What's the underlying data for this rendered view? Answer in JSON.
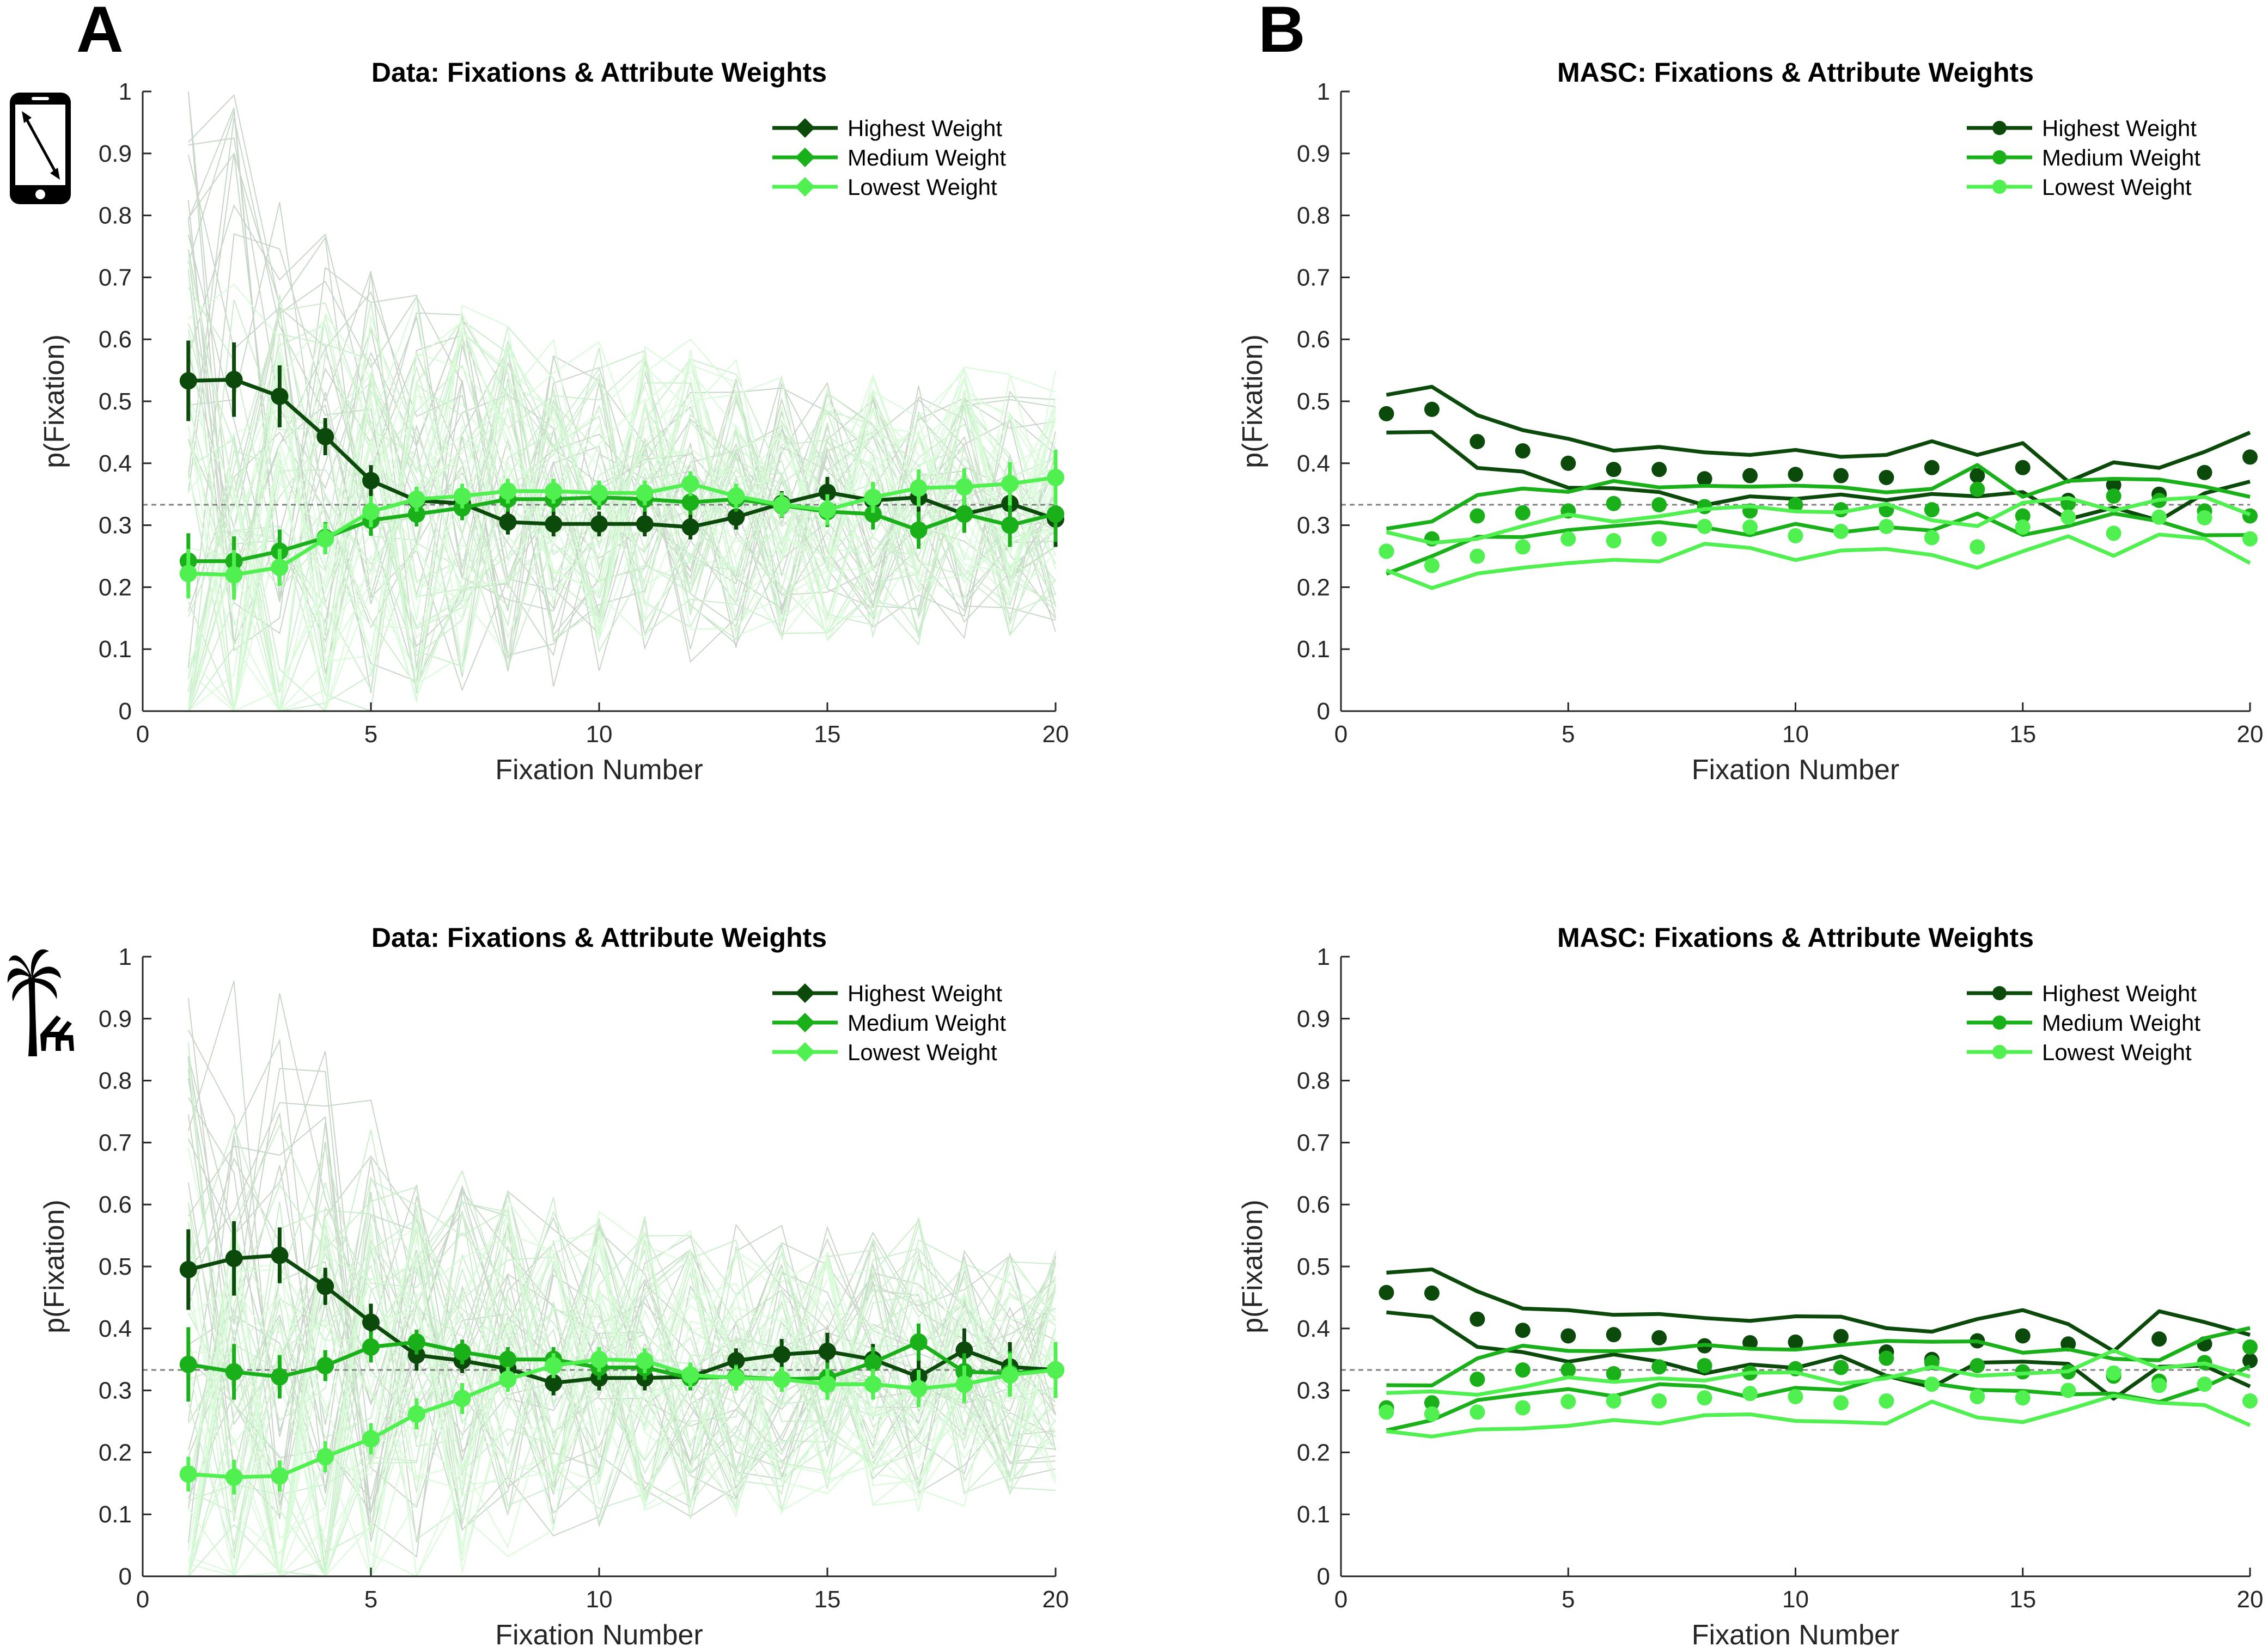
{
  "panel_letters": [
    "A",
    "B"
  ],
  "colors": {
    "highest": "#0b4a0b",
    "medium": "#19b019",
    "lowest": "#4ff04f",
    "chance": "#808080",
    "axis": "#262626"
  },
  "icons": [
    "smartphone-icon",
    "palm-tree-beach-chairs-icon"
  ],
  "chart_data": [
    {
      "type": "line",
      "title": "Data: Fixations & Attribute Weights",
      "xlabel": "Fixation Number",
      "ylabel": "p(Fixation)",
      "xlim": [
        0,
        20
      ],
      "ylim": [
        0,
        1
      ],
      "xticks": [
        0,
        5,
        10,
        15,
        20
      ],
      "yticks": [
        0,
        0.1,
        0.2,
        0.3,
        0.4,
        0.5,
        0.6,
        0.7,
        0.8,
        0.9,
        1
      ],
      "chance_level": 0.333,
      "legend_position": "top-right",
      "x": [
        1,
        2,
        3,
        4,
        5,
        6,
        7,
        8,
        9,
        10,
        11,
        12,
        13,
        14,
        15,
        16,
        17,
        18,
        19,
        20
      ],
      "series": [
        {
          "name": "Highest Weight",
          "color": "#0b4a0b",
          "values": [
            0.533,
            0.535,
            0.508,
            0.443,
            0.372,
            0.34,
            0.335,
            0.305,
            0.302,
            0.302,
            0.302,
            0.297,
            0.313,
            0.335,
            0.353,
            0.34,
            0.345,
            0.318,
            0.335,
            0.31
          ],
          "error": [
            0.065,
            0.06,
            0.05,
            0.03,
            0.025,
            0.02,
            0.02,
            0.02,
            0.02,
            0.02,
            0.02,
            0.02,
            0.02,
            0.02,
            0.025,
            0.025,
            0.03,
            0.03,
            0.035,
            0.045
          ]
        },
        {
          "name": "Medium Weight",
          "color": "#19b019",
          "values": [
            0.242,
            0.242,
            0.258,
            0.28,
            0.308,
            0.318,
            0.328,
            0.342,
            0.342,
            0.345,
            0.342,
            0.337,
            0.342,
            0.332,
            0.322,
            0.318,
            0.292,
            0.318,
            0.3,
            0.318
          ],
          "error": [
            0.045,
            0.04,
            0.035,
            0.025,
            0.025,
            0.02,
            0.02,
            0.02,
            0.02,
            0.02,
            0.02,
            0.02,
            0.02,
            0.02,
            0.025,
            0.025,
            0.03,
            0.03,
            0.035,
            0.045
          ]
        },
        {
          "name": "Lowest Weight",
          "color": "#4ff04f",
          "values": [
            0.222,
            0.22,
            0.232,
            0.278,
            0.322,
            0.342,
            0.347,
            0.355,
            0.355,
            0.352,
            0.352,
            0.367,
            0.347,
            0.333,
            0.325,
            0.345,
            0.36,
            0.362,
            0.367,
            0.377
          ],
          "error": [
            0.04,
            0.04,
            0.03,
            0.025,
            0.025,
            0.02,
            0.02,
            0.02,
            0.02,
            0.02,
            0.02,
            0.02,
            0.02,
            0.02,
            0.025,
            0.025,
            0.03,
            0.03,
            0.035,
            0.045
          ]
        }
      ]
    },
    {
      "type": "line",
      "title": "MASC: Fixations & Attribute Weights",
      "xlabel": "Fixation Number",
      "ylabel": "p(Fixation)",
      "xlim": [
        0,
        20
      ],
      "ylim": [
        0,
        1
      ],
      "xticks": [
        0,
        5,
        10,
        15,
        20
      ],
      "yticks": [
        0,
        0.1,
        0.2,
        0.3,
        0.4,
        0.5,
        0.6,
        0.7,
        0.8,
        0.9,
        1
      ],
      "chance_level": 0.333,
      "legend_position": "top-right",
      "x": [
        1,
        2,
        3,
        4,
        5,
        6,
        7,
        8,
        9,
        10,
        11,
        12,
        13,
        14,
        15,
        16,
        17,
        18,
        19,
        20
      ],
      "series": [
        {
          "name": "Highest Weight",
          "color": "#0b4a0b",
          "values": [
            0.48,
            0.487,
            0.435,
            0.42,
            0.4,
            0.39,
            0.39,
            0.375,
            0.38,
            0.382,
            0.38,
            0.377,
            0.393,
            0.38,
            0.393,
            0.34,
            0.365,
            0.35,
            0.385,
            0.41
          ],
          "band": 0.038
        },
        {
          "name": "Medium Weight",
          "color": "#19b019",
          "values": [
            0.258,
            0.278,
            0.315,
            0.32,
            0.323,
            0.335,
            0.333,
            0.33,
            0.323,
            0.333,
            0.325,
            0.325,
            0.325,
            0.358,
            0.315,
            0.335,
            0.347,
            0.34,
            0.323,
            0.315
          ],
          "band": 0.035
        },
        {
          "name": "Lowest Weight",
          "color": "#4ff04f",
          "values": [
            0.258,
            0.235,
            0.25,
            0.265,
            0.278,
            0.275,
            0.278,
            0.298,
            0.297,
            0.283,
            0.29,
            0.298,
            0.28,
            0.265,
            0.297,
            0.313,
            0.287,
            0.313,
            0.312,
            0.278
          ],
          "band": 0.035
        }
      ]
    },
    {
      "type": "line",
      "title": "Data: Fixations & Attribute Weights",
      "xlabel": "Fixation Number",
      "ylabel": "p(Fixation)",
      "xlim": [
        0,
        20
      ],
      "ylim": [
        0,
        1
      ],
      "xticks": [
        0,
        5,
        10,
        15,
        20
      ],
      "yticks": [
        0,
        0.1,
        0.2,
        0.3,
        0.4,
        0.5,
        0.6,
        0.7,
        0.8,
        0.9,
        1
      ],
      "chance_level": 0.333,
      "legend_position": "top-right",
      "x": [
        1,
        2,
        3,
        4,
        5,
        6,
        7,
        8,
        9,
        10,
        11,
        12,
        13,
        14,
        15,
        16,
        17,
        18,
        19,
        20
      ],
      "series": [
        {
          "name": "Highest Weight",
          "color": "#0b4a0b",
          "values": [
            0.495,
            0.513,
            0.518,
            0.468,
            0.41,
            0.357,
            0.348,
            0.335,
            0.312,
            0.32,
            0.32,
            0.322,
            0.348,
            0.358,
            0.363,
            0.35,
            0.322,
            0.365,
            0.338,
            0.333
          ],
          "error": [
            0.065,
            0.06,
            0.045,
            0.03,
            0.03,
            0.025,
            0.02,
            0.02,
            0.02,
            0.02,
            0.02,
            0.02,
            0.02,
            0.025,
            0.03,
            0.025,
            0.03,
            0.035,
            0.04,
            0.045
          ]
        },
        {
          "name": "Medium Weight",
          "color": "#19b019",
          "values": [
            0.342,
            0.33,
            0.322,
            0.34,
            0.37,
            0.378,
            0.362,
            0.35,
            0.35,
            0.337,
            0.337,
            0.32,
            0.322,
            0.318,
            0.32,
            0.345,
            0.378,
            0.33,
            0.328,
            0.333
          ],
          "error": [
            0.06,
            0.045,
            0.035,
            0.025,
            0.025,
            0.02,
            0.02,
            0.02,
            0.02,
            0.02,
            0.02,
            0.02,
            0.02,
            0.02,
            0.025,
            0.025,
            0.03,
            0.03,
            0.035,
            0.045
          ]
        },
        {
          "name": "Lowest Weight",
          "color": "#4ff04f",
          "values": [
            0.165,
            0.16,
            0.162,
            0.193,
            0.222,
            0.262,
            0.287,
            0.318,
            0.34,
            0.35,
            0.348,
            0.325,
            0.32,
            0.318,
            0.31,
            0.31,
            0.303,
            0.31,
            0.325,
            0.333
          ],
          "error": [
            0.028,
            0.028,
            0.025,
            0.025,
            0.025,
            0.025,
            0.025,
            0.02,
            0.02,
            0.02,
            0.02,
            0.02,
            0.02,
            0.02,
            0.025,
            0.025,
            0.03,
            0.03,
            0.035,
            0.045
          ]
        }
      ]
    },
    {
      "type": "line",
      "title": "MASC: Fixations & Attribute Weights",
      "xlabel": "Fixation Number",
      "ylabel": "p(Fixation)",
      "xlim": [
        0,
        20
      ],
      "ylim": [
        0,
        1
      ],
      "xticks": [
        0,
        5,
        10,
        15,
        20
      ],
      "yticks": [
        0,
        0.1,
        0.2,
        0.3,
        0.4,
        0.5,
        0.6,
        0.7,
        0.8,
        0.9,
        1
      ],
      "chance_level": 0.333,
      "legend_position": "top-right",
      "x": [
        1,
        2,
        3,
        4,
        5,
        6,
        7,
        8,
        9,
        10,
        11,
        12,
        13,
        14,
        15,
        16,
        17,
        18,
        19,
        20
      ],
      "series": [
        {
          "name": "Highest Weight",
          "color": "#0b4a0b",
          "values": [
            0.458,
            0.457,
            0.415,
            0.397,
            0.388,
            0.39,
            0.385,
            0.372,
            0.377,
            0.378,
            0.387,
            0.362,
            0.35,
            0.38,
            0.388,
            0.375,
            0.325,
            0.383,
            0.375,
            0.348
          ],
          "band": 0.04
        },
        {
          "name": "Medium Weight",
          "color": "#19b019",
          "values": [
            0.272,
            0.28,
            0.318,
            0.333,
            0.333,
            0.327,
            0.338,
            0.34,
            0.328,
            0.335,
            0.337,
            0.352,
            0.345,
            0.34,
            0.33,
            0.33,
            0.323,
            0.315,
            0.345,
            0.37
          ],
          "band": 0.035
        },
        {
          "name": "Lowest Weight",
          "color": "#4ff04f",
          "values": [
            0.265,
            0.262,
            0.265,
            0.272,
            0.282,
            0.283,
            0.283,
            0.288,
            0.295,
            0.29,
            0.28,
            0.283,
            0.31,
            0.29,
            0.288,
            0.3,
            0.328,
            0.308,
            0.31,
            0.283
          ],
          "band": 0.035
        }
      ]
    }
  ]
}
